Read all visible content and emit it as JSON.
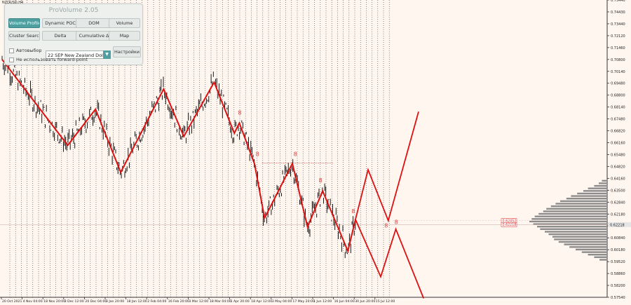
{
  "symbol_label": "NZDUSD,H4",
  "panel": {
    "title": "ProVolume 2.05",
    "buttons": [
      {
        "label": "Volume Profile",
        "active": true
      },
      {
        "label": "Dynamic POC",
        "active": false
      },
      {
        "label": "DOM",
        "active": false
      },
      {
        "label": "Volume",
        "active": false
      },
      {
        "label": "Cluster Search",
        "active": false
      },
      {
        "label": "Delta",
        "active": false
      },
      {
        "label": "Cumulative Δ",
        "active": false
      },
      {
        "label": "Map",
        "active": false
      }
    ],
    "autoselect_label": "Автовыбор",
    "contract_value": "22 SEP New Zealand Dollar",
    "settings_label": "Настройки",
    "forward_point_label": "Не использовать forward-point"
  },
  "colors": {
    "background": "#fff6f0",
    "candles": "#000000",
    "zigzag": "#dd1111",
    "profile": "#8c8c8c",
    "grid": "#444444"
  },
  "chart_data": {
    "type": "line",
    "title": "",
    "xlabel": "",
    "ylabel": "",
    "ylim": [
      0.5794,
      0.7544
    ],
    "y_ticks": [
      "0.75440",
      "0.74430",
      "0.73440",
      "0.72120",
      "0.71460",
      "0.70800",
      "0.70140",
      "0.69480",
      "0.68800",
      "0.68140",
      "0.67480",
      "0.66820",
      "0.66160",
      "0.65480",
      "0.64820",
      "0.64160",
      "0.63500",
      "0.62840",
      "0.62180",
      "0.61520",
      "0.60840",
      "0.60180",
      "0.59520",
      "0.58860",
      "0.58200",
      "0.57540"
    ],
    "x_ticks": [
      "20 Oct 2021",
      "4 Nov 04:00",
      "18 Nov 20:00",
      "3 Dec 12:00",
      "20 Dec 04:00",
      "3 Jan 20:00",
      "18 Jan 12:00",
      "2 Feb 04:00",
      "16 Feb 20:00",
      "3 Mar 12:00",
      "18 Mar 04:00",
      "1 Apr 20:00",
      "18 Apr 12:00",
      "3 May 04:00",
      "17 May 20:00",
      "1 Jun 12:00",
      "16 Jun 04:00",
      "30 Jun 20:00",
      "15 Jul 12:00"
    ],
    "current_price_labels": [
      "0.62452",
      "0.62218"
    ],
    "current_price": 0.62218,
    "point_of_control": 0.6245,
    "zigzag": [
      {
        "bar": 0,
        "price": 0.7194
      },
      {
        "bar": 26,
        "price": 0.6689
      },
      {
        "bar": 37,
        "price": 0.6901
      },
      {
        "bar": 47,
        "price": 0.653
      },
      {
        "bar": 64,
        "price": 0.702
      },
      {
        "bar": 72,
        "price": 0.6741
      },
      {
        "bar": 84,
        "price": 0.706
      },
      {
        "bar": 92,
        "price": 0.676
      },
      {
        "bar": 94,
        "price": 0.682
      },
      {
        "bar": 100,
        "price": 0.658
      },
      {
        "bar": 104,
        "price": 0.626
      },
      {
        "bar": 115,
        "price": 0.6582
      },
      {
        "bar": 121,
        "price": 0.6209
      },
      {
        "bar": 127,
        "price": 0.642
      },
      {
        "bar": 137,
        "price": 0.6066
      },
      {
        "bar": 140,
        "price": 0.6252
      }
    ],
    "projections": [
      [
        {
          "bar": 140,
          "price": 0.6252
        },
        {
          "bar": 145,
          "price": 0.6545
        },
        {
          "bar": 153,
          "price": 0.6245
        },
        {
          "bar": 165,
          "price": 0.6887
        }
      ],
      [
        {
          "bar": 140,
          "price": 0.6252
        },
        {
          "bar": 150,
          "price": 0.5915
        },
        {
          "bar": 156,
          "price": 0.6195
        },
        {
          "bar": 167,
          "price": 0.5788
        }
      ]
    ],
    "markers": [
      {
        "bar": 94,
        "price": 0.687,
        "label": "8"
      },
      {
        "bar": 101,
        "price": 0.6625,
        "label": "8"
      },
      {
        "bar": 116,
        "price": 0.6625,
        "label": "8"
      },
      {
        "bar": 126,
        "price": 0.647,
        "label": "8"
      },
      {
        "bar": 139,
        "price": 0.629,
        "label": "8"
      },
      {
        "bar": 152,
        "price": 0.6205,
        "label": "8"
      },
      {
        "bar": 156,
        "price": 0.6225,
        "label": "8"
      }
    ],
    "resistance": {
      "from_bar": 103,
      "to_bar": 131,
      "price": 0.6585
    },
    "volume_profile": [
      {
        "price": 0.648,
        "v": 0.06
      },
      {
        "price": 0.6465,
        "v": 0.1
      },
      {
        "price": 0.645,
        "v": 0.16
      },
      {
        "price": 0.6435,
        "v": 0.24
      },
      {
        "price": 0.642,
        "v": 0.3
      },
      {
        "price": 0.6405,
        "v": 0.38
      },
      {
        "price": 0.639,
        "v": 0.46
      },
      {
        "price": 0.6375,
        "v": 0.52
      },
      {
        "price": 0.636,
        "v": 0.6
      },
      {
        "price": 0.6345,
        "v": 0.66
      },
      {
        "price": 0.633,
        "v": 0.72
      },
      {
        "price": 0.6315,
        "v": 0.78
      },
      {
        "price": 0.63,
        "v": 0.82
      },
      {
        "price": 0.6285,
        "v": 0.88
      },
      {
        "price": 0.627,
        "v": 0.93
      },
      {
        "price": 0.6255,
        "v": 0.97
      },
      {
        "price": 0.624,
        "v": 1.0
      },
      {
        "price": 0.6225,
        "v": 0.95
      },
      {
        "price": 0.621,
        "v": 0.9
      },
      {
        "price": 0.6195,
        "v": 0.86
      },
      {
        "price": 0.618,
        "v": 0.8
      },
      {
        "price": 0.6165,
        "v": 0.75
      },
      {
        "price": 0.615,
        "v": 0.7
      },
      {
        "price": 0.6135,
        "v": 0.68
      },
      {
        "price": 0.612,
        "v": 0.62
      },
      {
        "price": 0.6105,
        "v": 0.55
      },
      {
        "price": 0.609,
        "v": 0.48
      },
      {
        "price": 0.6075,
        "v": 0.4
      },
      {
        "price": 0.606,
        "v": 0.32
      },
      {
        "price": 0.6045,
        "v": 0.24
      },
      {
        "price": 0.603,
        "v": 0.16
      },
      {
        "price": 0.6015,
        "v": 0.09
      }
    ]
  }
}
